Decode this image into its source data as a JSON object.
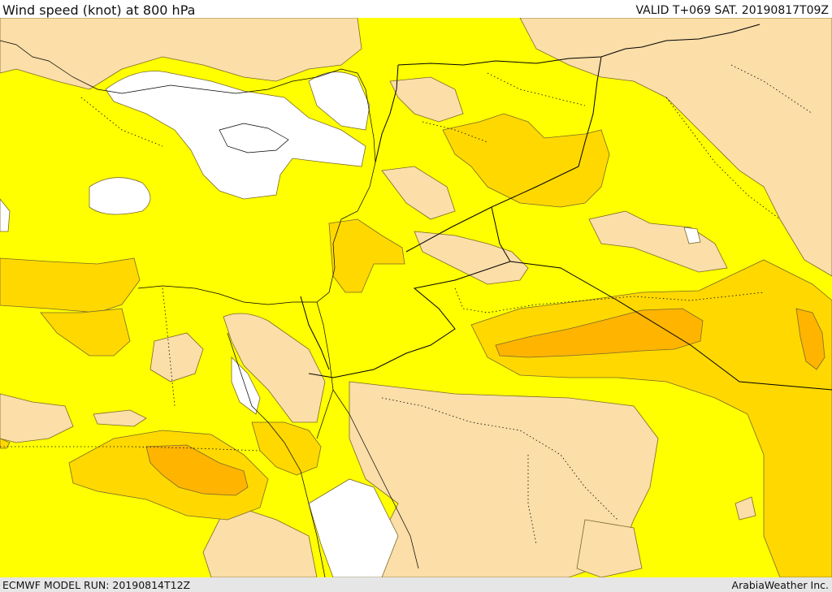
{
  "header": {
    "title": "Wind speed (knot) at 800 hPa",
    "valid_time": "VALID T+069 SAT. 20190817T09Z"
  },
  "footer": {
    "model_run": "ECMWF MODEL RUN: 20190814T12Z",
    "credit": "ArabiaWeather Inc."
  },
  "colors": {
    "calm": "#ffffff",
    "light": "#fbdea8",
    "moderate": "#ffff00",
    "fresh": "#ffd800",
    "strong": "#ffb400",
    "contour": "#7a6a2a",
    "border": "#000000"
  }
}
